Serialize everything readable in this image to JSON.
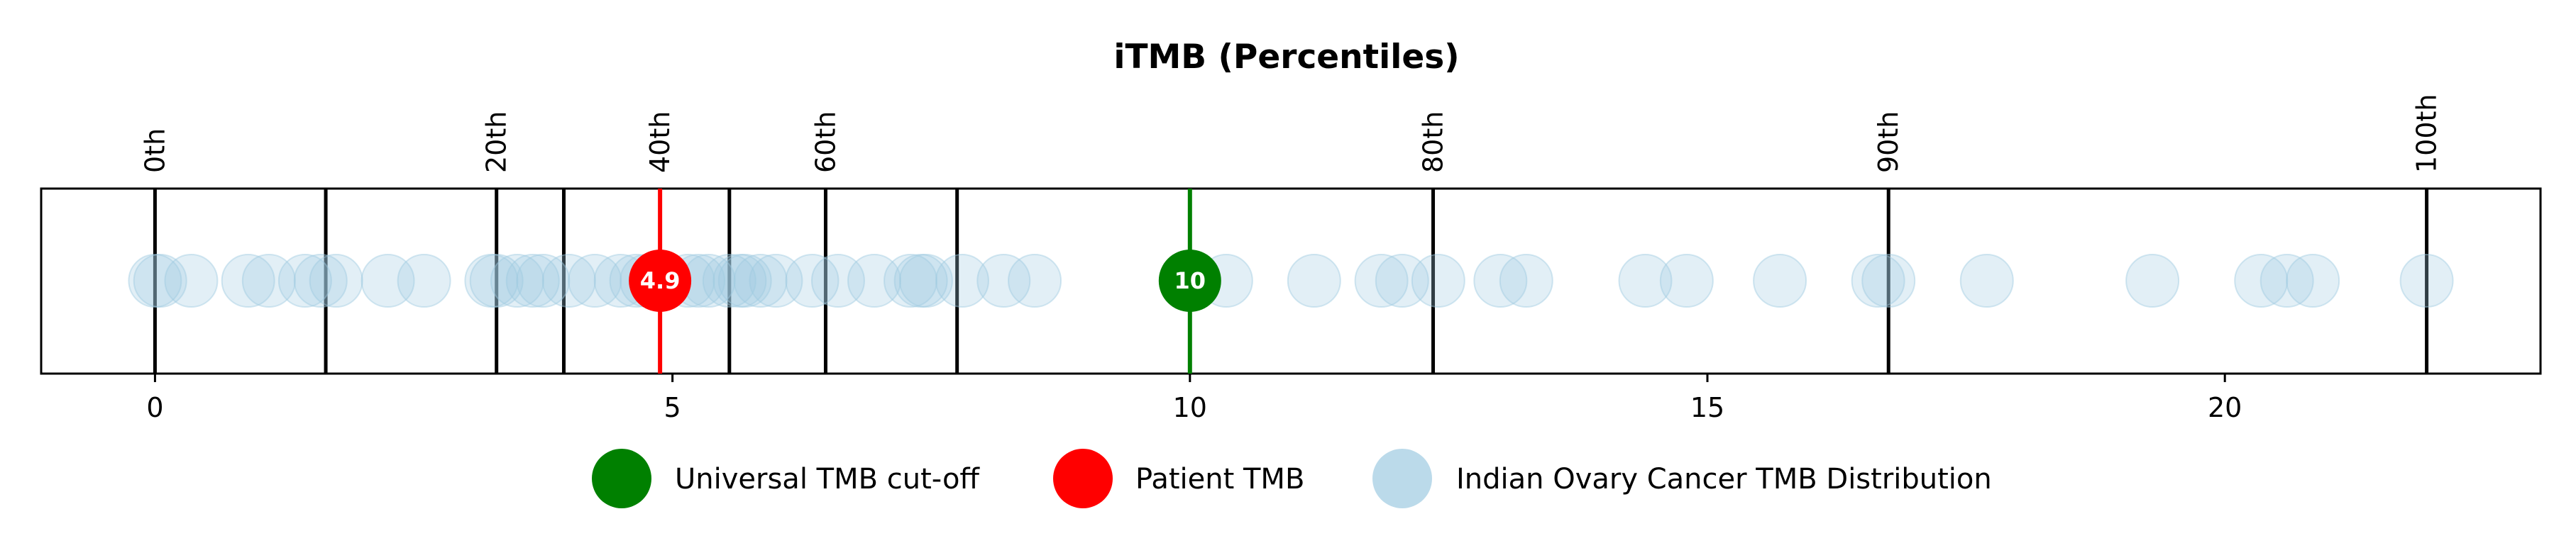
{
  "chart_data": {
    "type": "scatter",
    "title": "iTMB (Percentiles)",
    "xlim": [
      -1.1,
      23.05
    ],
    "x_ticks": [
      0,
      5,
      10,
      15,
      20
    ],
    "x_tick_labels": [
      "0",
      "5",
      "10",
      "15",
      "20"
    ],
    "percentile_lines": [
      {
        "x": 0.0,
        "label": "0th"
      },
      {
        "x": 1.65,
        "label": ""
      },
      {
        "x": 3.3,
        "label": "20th"
      },
      {
        "x": 3.95,
        "label": ""
      },
      {
        "x": 4.88,
        "label": "40th"
      },
      {
        "x": 5.55,
        "label": ""
      },
      {
        "x": 6.48,
        "label": "60th"
      },
      {
        "x": 7.75,
        "label": ""
      },
      {
        "x": 12.35,
        "label": "80th"
      },
      {
        "x": 16.75,
        "label": "90th"
      },
      {
        "x": 21.95,
        "label": "100th"
      }
    ],
    "distribution": {
      "name": "Indian Ovary Cancer TMB Distribution",
      "color": "#9ecae1",
      "x": [
        0.0,
        0.05,
        0.35,
        0.9,
        1.1,
        1.45,
        1.6,
        1.75,
        2.25,
        2.6,
        3.25,
        3.3,
        3.5,
        3.65,
        3.75,
        4.0,
        4.25,
        4.5,
        4.65,
        4.75,
        5.15,
        5.25,
        5.35,
        5.55,
        5.65,
        5.7,
        5.85,
        6.0,
        6.35,
        6.6,
        6.95,
        7.3,
        7.4,
        7.45,
        7.8,
        8.2,
        8.5,
        10.35,
        11.2,
        11.85,
        12.05,
        12.4,
        13.0,
        13.25,
        14.4,
        14.8,
        15.7,
        16.65,
        16.75,
        17.7,
        19.3,
        20.35,
        20.6,
        20.85,
        21.95
      ]
    },
    "patient": {
      "name": "Patient TMB",
      "x": 4.88,
      "label": "4.9",
      "color": "#ff0000"
    },
    "cutoff": {
      "name": "Universal TMB cut-off",
      "x": 10,
      "label": "10",
      "color": "#008000"
    },
    "legend": {
      "placement": "bottom-center",
      "entries": [
        {
          "label": "Universal TMB cut-off",
          "color": "#008000"
        },
        {
          "label": "Patient TMB",
          "color": "#ff0000"
        },
        {
          "label": "Indian Ovary Cancer TMB Distribution",
          "color": "#9ecae1"
        }
      ]
    },
    "grid": false
  }
}
